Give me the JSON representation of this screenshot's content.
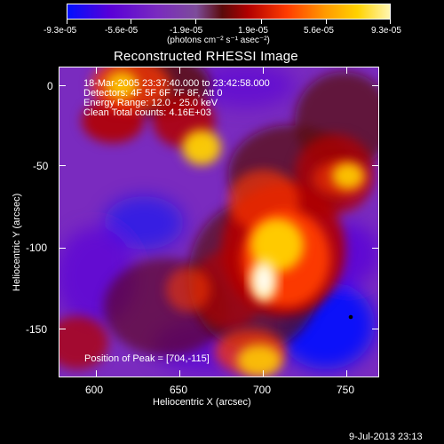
{
  "colorbar": {
    "tick_labels": [
      "-9.3e-05",
      "-5.6e-05",
      "-1.9e-05",
      "1.9e-05",
      "5.6e-05",
      "9.3e-05"
    ],
    "units": "(photons cm⁻² s⁻¹ asec⁻²)",
    "colors": {
      "c0": "#0010ff",
      "c1": "#5800d8",
      "c2": "#7a2bbf",
      "c3": "#7d4c9a",
      "c4": "#5a0a0a",
      "c5": "#b10000",
      "c6": "#ff3b00",
      "c7": "#ff9a00",
      "c8": "#ffd200",
      "c9": "#fff6b0"
    }
  },
  "plot": {
    "title": "Reconstructed RHESSI Image",
    "x_label": "Heliocentric X (arcsec)",
    "y_label": "Heliocentric Y (arcsec)",
    "x_ticks": [
      "600",
      "650",
      "700",
      "750"
    ],
    "y_ticks": [
      "0",
      "-50",
      "-100",
      "-150"
    ],
    "overlay_lines": [
      "18-Mar-2005 23:37:40.000 to 23:42:58.000",
      "Detectors: 4F 5F 6F 7F 8F, Att 0",
      "Energy Range: 12.0 - 25.0 keV",
      "Clean    Total counts: 4.16E+03"
    ],
    "peak_label": "Position of Peak = [704,-115]",
    "footer_date": "9-Jul-2013 23:13"
  }
}
